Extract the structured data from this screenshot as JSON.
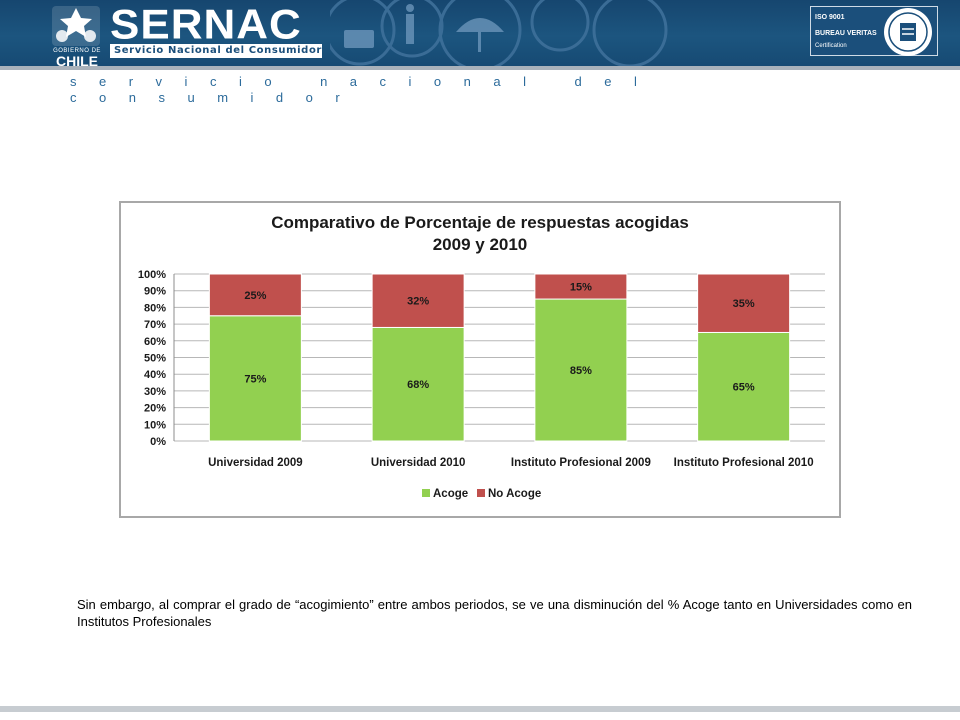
{
  "header": {
    "gobierno_small": "GOBIERNO DE",
    "gobierno_big": "CHILE",
    "brand": "SERNAC",
    "brand_subtitle": "Servicio Nacional del Consumidor",
    "iso_line1": "ISO 9001",
    "iso_line2": "BUREAU VERITAS",
    "iso_line3": "Certification",
    "banner_color": "#1c557f",
    "deco_icons": [
      "book-icon",
      "info-icon",
      "umbrella-icon"
    ]
  },
  "tagline": "servicio nacional del consumidor",
  "chart_data": {
    "type": "bar",
    "stacked": true,
    "percent": true,
    "title_line1": "Comparativo de Porcentaje de respuestas acogidas",
    "title_line2": "2009 y 2010",
    "categories": [
      "Universidad 2009",
      "Universidad 2010",
      "Instituto Profesional 2009",
      "Instituto Profesional 2010"
    ],
    "series": [
      {
        "name": "Acoge",
        "values": [
          75,
          68,
          85,
          65
        ],
        "labels": [
          "75%",
          "68%",
          "85%",
          "65%"
        ],
        "color": "#92d050"
      },
      {
        "name": "No Acoge",
        "values": [
          25,
          32,
          15,
          35
        ],
        "labels": [
          "25%",
          "32%",
          "15%",
          "35%"
        ],
        "color": "#c0504d"
      }
    ],
    "yticks": [
      "0%",
      "10%",
      "20%",
      "30%",
      "40%",
      "50%",
      "60%",
      "70%",
      "80%",
      "90%",
      "100%"
    ],
    "ylim": [
      0,
      100
    ],
    "grid": true,
    "legend_position": "bottom"
  },
  "body_text": "Sin embargo, al comprar el grado de “acogimiento” entre ambos periodos, se ve una disminución del % Acoge tanto en Universidades como en Institutos Profesionales"
}
